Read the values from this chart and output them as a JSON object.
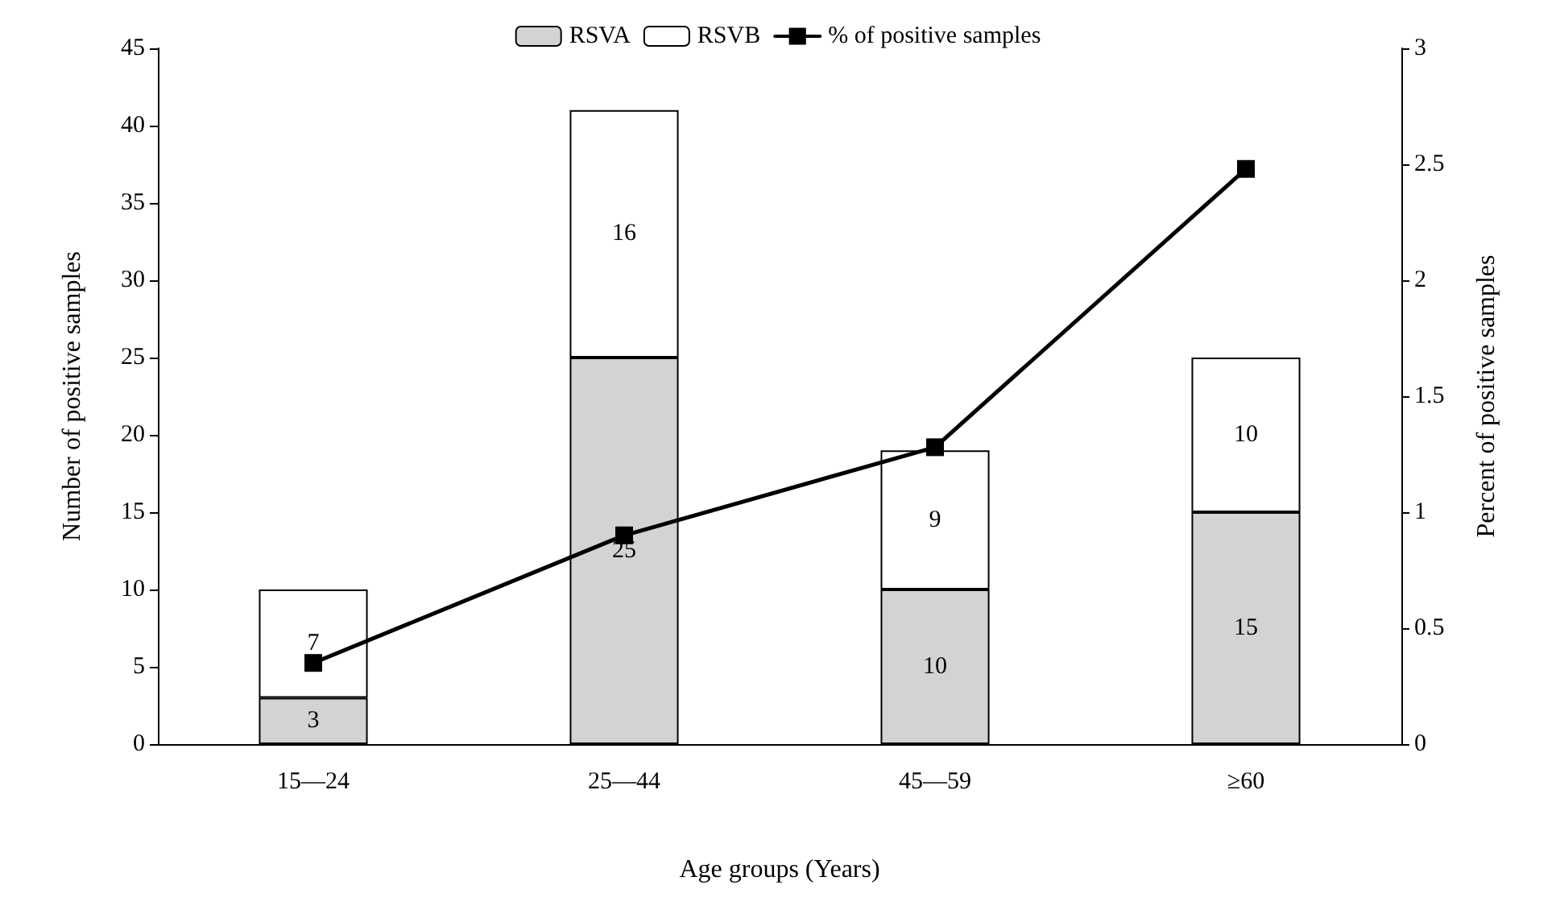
{
  "chart_data": {
    "type": "bar",
    "stacked": true,
    "categories": [
      "15—24",
      "25—44",
      "45—59",
      "≥60"
    ],
    "series": [
      {
        "name": "RSVA",
        "color": "#d3d3d3",
        "values": [
          3,
          25,
          10,
          15
        ],
        "value_labels": [
          "3",
          "25",
          "10",
          "15"
        ]
      },
      {
        "name": "RSVB",
        "color": "#ffffff",
        "values": [
          7,
          16,
          9,
          10
        ],
        "value_labels": [
          "7",
          "16",
          "9",
          "10"
        ]
      },
      {
        "name": "% of positive samples",
        "type": "line",
        "axis": "y2",
        "color": "#000000",
        "values": [
          0.35,
          0.9,
          1.28,
          2.48
        ],
        "marker": "square",
        "line_style": "solid"
      }
    ],
    "xlabel": "Age groups (Years)",
    "ylabel": "Number of positive samples",
    "y2label": "Percent of positive samples",
    "ylim": [
      0,
      45
    ],
    "yticks": [
      0,
      5,
      10,
      15,
      20,
      25,
      30,
      35,
      40,
      45
    ],
    "y2lim": [
      0,
      3
    ],
    "y2ticks": [
      0,
      0.5,
      1,
      1.5,
      2,
      2.5,
      3
    ],
    "legend": "top",
    "grid": false
  }
}
